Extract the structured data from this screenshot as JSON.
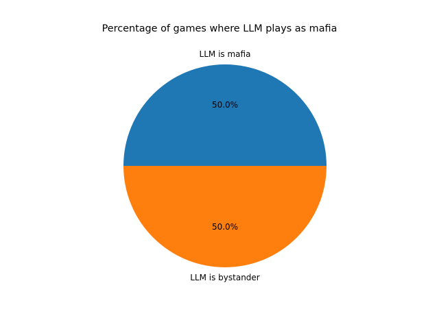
{
  "chart_data": {
    "type": "pie",
    "title": "Percentage of games where LLM plays as mafia",
    "slices": [
      {
        "label": "LLM is mafia",
        "value": 50.0,
        "pct_label": "50.0%",
        "color": "#1f77b4"
      },
      {
        "label": "LLM is bystander",
        "value": 50.0,
        "pct_label": "50.0%",
        "color": "#ff7f0e"
      }
    ],
    "start_angle_deg": 0,
    "direction": "counterclockwise"
  }
}
